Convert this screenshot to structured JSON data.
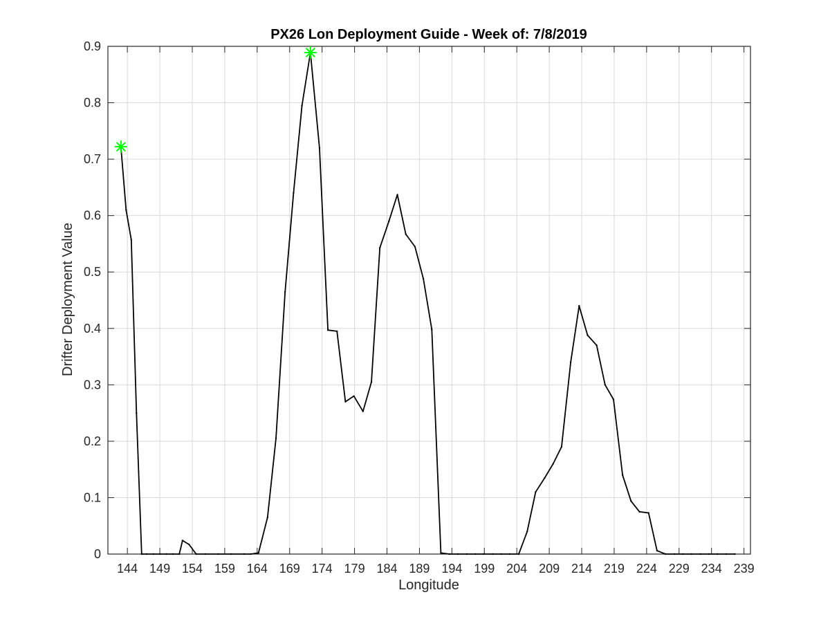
{
  "chart_data": {
    "type": "line",
    "title": "PX26 Lon Deployment Guide - Week of: 7/8/2019",
    "xlabel": "Longitude",
    "ylabel": "Drifter Deployment Value",
    "xlim": [
      141,
      240
    ],
    "ylim": [
      0,
      0.9
    ],
    "xticks": [
      144,
      149,
      154,
      159,
      164,
      169,
      174,
      179,
      184,
      189,
      194,
      199,
      204,
      209,
      214,
      219,
      224,
      229,
      234,
      239
    ],
    "yticks": [
      0,
      0.1,
      0.2,
      0.3,
      0.4,
      0.5,
      0.6,
      0.7,
      0.8,
      0.9
    ],
    "ytick_labels": [
      "0",
      "0.1",
      "0.2",
      "0.3",
      "0.4",
      "0.5",
      "0.6",
      "0.7",
      "0.8",
      "0.9"
    ],
    "grid": true,
    "series": [
      {
        "color": "#000000",
        "x": [
          143,
          143.8,
          144.6,
          145.4,
          146.2,
          147,
          148,
          149,
          150,
          151,
          152,
          152.5,
          153.5,
          154.6,
          156,
          158,
          160,
          162,
          163,
          164.2,
          165.6,
          166.9,
          168.3,
          169.6,
          170.9,
          172.2,
          173.6,
          174.9,
          176.3,
          177.6,
          178.9,
          180.3,
          181.6,
          182.9,
          184.3,
          185.6,
          186.9,
          188.3,
          189.6,
          190.9,
          192.3,
          193.6,
          194.9,
          196.3,
          197.6,
          198.9,
          200.3,
          201.6,
          202.9,
          204.3,
          205.6,
          206.9,
          208.3,
          209.6,
          210.9,
          212.3,
          213.6,
          214.9,
          216.3,
          217.6,
          218.9,
          220.3,
          221.6,
          222.9,
          224.3,
          225.6,
          226.9,
          228.3,
          229.6,
          230.9,
          232.3,
          233.6,
          234.9,
          236.3,
          237.6
        ],
        "y": [
          0.722,
          0.61,
          0.557,
          0.25,
          0.0,
          0.0,
          0.0,
          0.0,
          0.0,
          0.0,
          0.0,
          0.024,
          0.017,
          0.0,
          0.0,
          0.0,
          0.0,
          0.0,
          0.0,
          0.002,
          0.065,
          0.205,
          0.465,
          0.64,
          0.795,
          0.889,
          0.72,
          0.397,
          0.395,
          0.27,
          0.28,
          0.253,
          0.305,
          0.543,
          0.59,
          0.637,
          0.567,
          0.545,
          0.488,
          0.398,
          0.002,
          0.0,
          0.0,
          0.0,
          0.0,
          0.0,
          0.0,
          0.0,
          0.0,
          0.0,
          0.04,
          0.11,
          0.135,
          0.16,
          0.19,
          0.34,
          0.44,
          0.388,
          0.37,
          0.3,
          0.274,
          0.14,
          0.094,
          0.075,
          0.073,
          0.006,
          0.0,
          0.0,
          0.0,
          0.0,
          0.0,
          0.0,
          0.0,
          0.0,
          0.0
        ]
      }
    ],
    "markers": [
      {
        "x": 143,
        "y": 0.722,
        "color": "#00ff00",
        "symbol": "asterisk"
      },
      {
        "x": 172.2,
        "y": 0.889,
        "color": "#00ff00",
        "symbol": "asterisk"
      }
    ]
  }
}
